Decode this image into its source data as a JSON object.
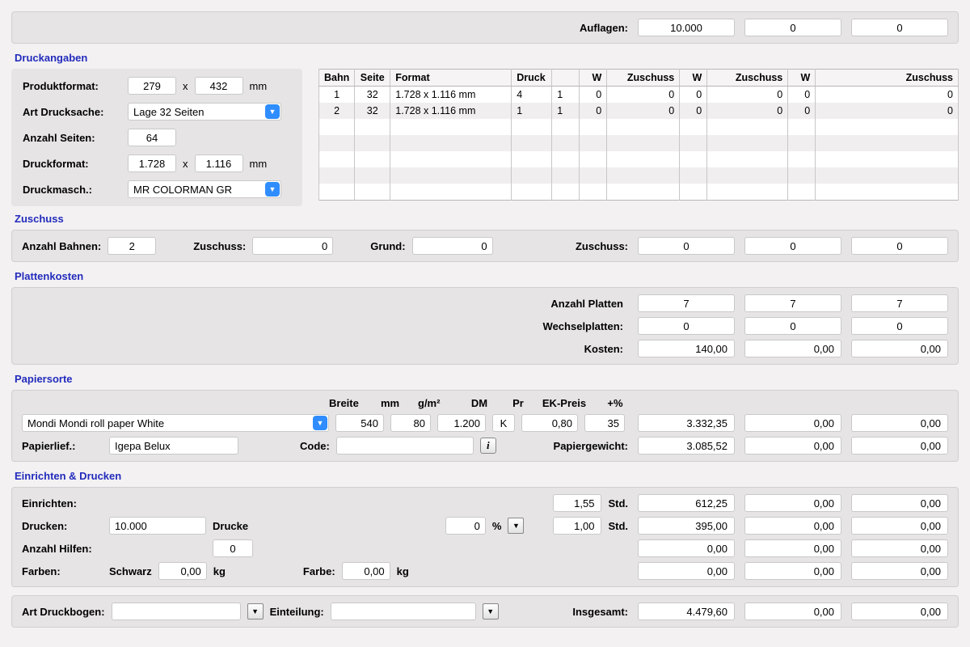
{
  "auflagen": {
    "label": "Auflagen:",
    "values": [
      "10.000",
      "0",
      "0"
    ]
  },
  "druckangaben": {
    "title": "Druckangaben",
    "produktformat": {
      "label": "Produktformat:",
      "w": "279",
      "sep": "x",
      "h": "432",
      "unit": "mm"
    },
    "art_drucksache": {
      "label": "Art Drucksache:",
      "value": "Lage 32 Seiten"
    },
    "anzahl_seiten": {
      "label": "Anzahl Seiten:",
      "value": "64"
    },
    "druckformat": {
      "label": "Druckformat:",
      "w": "1.728",
      "sep": "x",
      "h": "1.116",
      "unit": "mm"
    },
    "druckmasch": {
      "label": "Druckmasch.:",
      "value": "MR COLORMAN GR"
    }
  },
  "table": {
    "cols": [
      "Bahn",
      "Seite",
      "Format",
      "Druck",
      "",
      "W",
      "Zuschuss",
      "W",
      "Zuschuss",
      "W",
      "Zuschuss"
    ],
    "rows": [
      [
        "1",
        "32",
        "1.728 x 1.116 mm",
        "4",
        "1",
        "0",
        "0",
        "0",
        "0",
        "0",
        "0"
      ],
      [
        "2",
        "32",
        "1.728 x 1.116 mm",
        "1",
        "1",
        "0",
        "0",
        "0",
        "0",
        "0",
        "0"
      ]
    ],
    "widths": [
      "44px",
      "44px",
      "150px",
      "50px",
      "34px",
      "34px",
      "90px",
      "34px",
      "100px",
      "34px",
      ""
    ]
  },
  "zuschuss": {
    "title": "Zuschuss",
    "anzahl_bahnen_label": "Anzahl Bahnen:",
    "anzahl_bahnen": "2",
    "zuschuss_label": "Zuschuss:",
    "zuschuss1": "0",
    "grund_label": "Grund:",
    "grund": "0",
    "zuschuss2_label": "Zuschuss:",
    "vals": [
      "0",
      "0",
      "0"
    ]
  },
  "plattenkosten": {
    "title": "Plattenkosten",
    "rows": [
      {
        "label": "Anzahl Platten",
        "vals": [
          "7",
          "7",
          "7"
        ]
      },
      {
        "label": "Wechselplatten:",
        "vals": [
          "0",
          "0",
          "0"
        ]
      },
      {
        "label": "Kosten:",
        "vals": [
          "140,00",
          "0,00",
          "0,00"
        ]
      }
    ]
  },
  "papiersorte": {
    "title": "Papiersorte",
    "headers": {
      "breite": "Breite",
      "mm": "mm",
      "gm2": "g/m²",
      "dm": "DM",
      "pr": "Pr",
      "ek": "EK-Preis",
      "pct": "+%"
    },
    "product": "Mondi Mondi roll paper White",
    "breite": "540",
    "gm2": "80",
    "dm": "1.200",
    "pr": "K",
    "ek": "0,80",
    "pct": "35",
    "totals": [
      "3.332,35",
      "0,00",
      "0,00"
    ],
    "papierlief_label": "Papierlief.:",
    "papierlief": "Igepa Belux",
    "code_label": "Code:",
    "code": "",
    "gewicht_label": "Papiergewicht:",
    "gewicht": [
      "3.085,52",
      "0,00",
      "0,00"
    ]
  },
  "einrichten": {
    "title": "Einrichten & Drucken",
    "einrichten_label": "Einrichten:",
    "einrichten_std": "1,55",
    "einrichten_vals": [
      "612,25",
      "0,00",
      "0,00"
    ],
    "drucken_label": "Drucken:",
    "drucke": "10.000",
    "drucke_unit": "Drucke",
    "pct": "0",
    "pct_unit": "%",
    "drucken_std": "1,00",
    "drucken_vals": [
      "395,00",
      "0,00",
      "0,00"
    ],
    "std_label": "Std.",
    "hilfen_label": "Anzahl Hilfen:",
    "hilfen": "0",
    "hilfen_vals": [
      "0,00",
      "0,00",
      "0,00"
    ],
    "farben_label": "Farben:",
    "schwarz_label": "Schwarz",
    "schwarz": "0,00",
    "kg": "kg",
    "farbe_label": "Farbe:",
    "farbe": "0,00",
    "farben_vals": [
      "0,00",
      "0,00",
      "0,00"
    ]
  },
  "footer": {
    "art_druckbogen_label": "Art Druckbogen:",
    "art_druckbogen": "",
    "einteilung_label": "Einteilung:",
    "einteilung": "",
    "insgesamt_label": "Insgesamt:",
    "vals": [
      "4.479,60",
      "0,00",
      "0,00"
    ]
  }
}
